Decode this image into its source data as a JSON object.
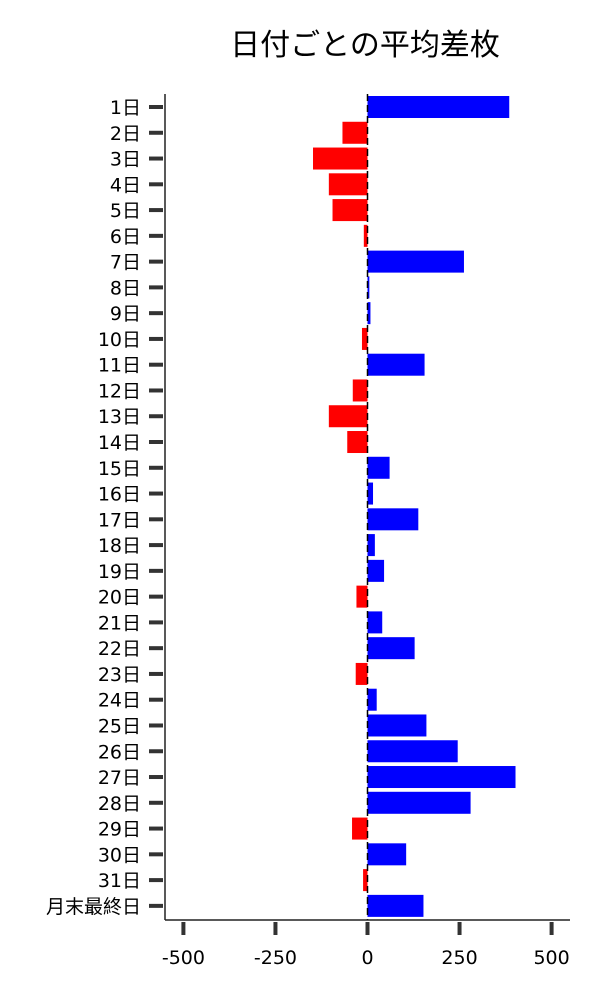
{
  "colors": {
    "positive": "#0000ff",
    "negative": "#ff0000",
    "axis": "#222222",
    "zero_line": "#000000"
  },
  "chart_data": {
    "type": "bar",
    "orientation": "horizontal",
    "title": "日付ごとの平均差枚",
    "xlabel": "",
    "ylabel": "",
    "xlim": [
      -550,
      550
    ],
    "xticks": [
      -500,
      -250,
      0,
      250,
      500
    ],
    "xtick_labels": [
      "-500",
      "-250",
      "0",
      "250",
      "500"
    ],
    "grid": false,
    "categories": [
      "1日",
      "2日",
      "3日",
      "4日",
      "5日",
      "6日",
      "7日",
      "8日",
      "9日",
      "10日",
      "11日",
      "12日",
      "13日",
      "14日",
      "15日",
      "16日",
      "17日",
      "18日",
      "19日",
      "20日",
      "21日",
      "22日",
      "23日",
      "24日",
      "25日",
      "26日",
      "27日",
      "28日",
      "29日",
      "30日",
      "31日",
      "月末最終日"
    ],
    "values": [
      385,
      -68,
      -148,
      -105,
      -95,
      -10,
      262,
      5,
      8,
      -15,
      155,
      -40,
      -105,
      -55,
      60,
      15,
      138,
      20,
      45,
      -30,
      40,
      128,
      -32,
      25,
      160,
      245,
      402,
      280,
      -42,
      105,
      -12,
      152
    ]
  }
}
